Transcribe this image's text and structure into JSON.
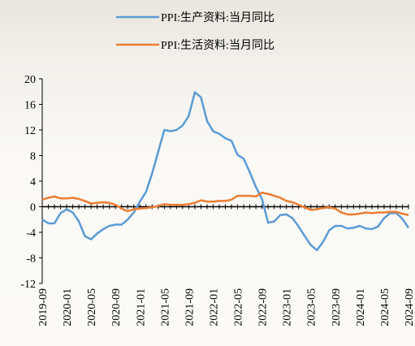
{
  "chart_data": {
    "type": "line",
    "categories": [
      "2019-09",
      null,
      null,
      null,
      "2020-01",
      null,
      null,
      null,
      "2020-05",
      null,
      null,
      null,
      "2020-09",
      null,
      null,
      null,
      "2021-01",
      null,
      null,
      null,
      "2021-05",
      null,
      null,
      null,
      "2021-09",
      null,
      null,
      null,
      "2022-01",
      null,
      null,
      null,
      "2022-05",
      null,
      null,
      null,
      "2022-09",
      null,
      null,
      null,
      "2023-01",
      null,
      null,
      null,
      "2023-05",
      null,
      null,
      null,
      "2023-09",
      null,
      null,
      null,
      "2024-01",
      null,
      null,
      null,
      "2024-05",
      null,
      null,
      null,
      "2024-09"
    ],
    "series": [
      {
        "name": "PPI:生产资料:当月同比",
        "color": "#5b9bd5",
        "values": [
          -2.0,
          -2.6,
          -2.6,
          -1.0,
          -0.4,
          -0.9,
          -2.3,
          -4.6,
          -5.1,
          -4.2,
          -3.5,
          -3.0,
          -2.8,
          -2.8,
          -2.0,
          -0.9,
          0.8,
          2.3,
          5.2,
          8.6,
          12.0,
          11.8,
          12.0,
          12.7,
          14.2,
          17.9,
          17.1,
          13.4,
          11.8,
          11.4,
          10.7,
          10.3,
          8.1,
          7.5,
          5.4,
          3.1,
          1.2,
          -2.5,
          -2.3,
          -1.3,
          -1.2,
          -1.8,
          -3.1,
          -4.6,
          -6.0,
          -6.8,
          -5.5,
          -3.7,
          -3.0,
          -3.0,
          -3.4,
          -3.3,
          -3.0,
          -3.4,
          -3.5,
          -3.1,
          -1.8,
          -1.0,
          -1.0,
          -1.9,
          -3.3
        ]
      },
      {
        "name": "PPI:生活资料:当月同比",
        "color": "#ed7d31",
        "values": [
          1.1,
          1.4,
          1.6,
          1.3,
          1.3,
          1.4,
          1.2,
          0.9,
          0.5,
          0.6,
          0.7,
          0.6,
          0.3,
          -0.3,
          -0.7,
          -0.4,
          -0.3,
          -0.2,
          -0.1,
          0.1,
          0.4,
          0.3,
          0.3,
          0.3,
          0.4,
          0.6,
          1.0,
          0.8,
          0.8,
          0.9,
          0.9,
          1.1,
          1.7,
          1.7,
          1.7,
          1.6,
          2.2,
          2.0,
          1.7,
          1.4,
          0.9,
          0.7,
          0.3,
          -0.1,
          -0.5,
          -0.4,
          -0.2,
          -0.1,
          -0.3,
          -0.9,
          -1.2,
          -1.2,
          -1.1,
          -0.9,
          -1.0,
          -0.9,
          -0.9,
          -0.8,
          -0.8,
          -1.1,
          -1.3
        ]
      }
    ],
    "ylim": [
      -12,
      20
    ],
    "yticks": [
      -12,
      -8,
      -4,
      0,
      4,
      8,
      12,
      16,
      20
    ],
    "grid": false,
    "legend": "top"
  }
}
